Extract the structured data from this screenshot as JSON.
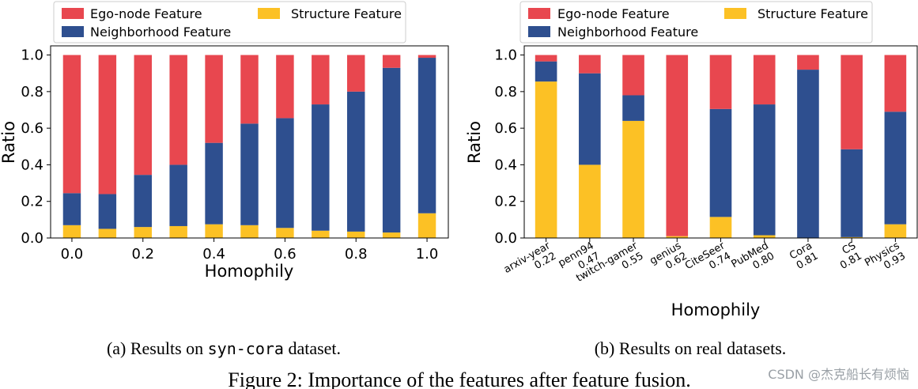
{
  "colors": {
    "ego": "#e8474f",
    "neighborhood": "#2e4f8f",
    "structure": "#fcc125",
    "frame": "#000000",
    "legend_border": "#cccccc"
  },
  "legend": {
    "ego": "Ego-node Feature",
    "neighborhood": "Neighborhood Feature",
    "structure": "Structure Feature"
  },
  "chart_data": [
    {
      "type": "bar",
      "stacked": true,
      "xlabel": "Homophily",
      "ylabel": "Ratio",
      "ylim": [
        0,
        1.05
      ],
      "xlim": [
        -0.06,
        1.06
      ],
      "yticks": [
        "0.0",
        "0.2",
        "0.4",
        "0.6",
        "0.8",
        "1.0"
      ],
      "xticks": [
        "0.0",
        "0.2",
        "0.4",
        "0.6",
        "0.8",
        "1.0"
      ],
      "x": [
        0.0,
        0.1,
        0.2,
        0.3,
        0.4,
        0.5,
        0.6,
        0.7,
        0.8,
        0.9,
        1.0
      ],
      "series": [
        {
          "name": "Structure Feature",
          "values": [
            0.07,
            0.05,
            0.06,
            0.065,
            0.075,
            0.07,
            0.055,
            0.04,
            0.035,
            0.03,
            0.135
          ]
        },
        {
          "name": "Neighborhood Feature",
          "values": [
            0.175,
            0.19,
            0.285,
            0.335,
            0.445,
            0.555,
            0.6,
            0.69,
            0.765,
            0.9,
            0.85
          ]
        },
        {
          "name": "Ego-node Feature",
          "values": [
            0.755,
            0.76,
            0.655,
            0.6,
            0.48,
            0.375,
            0.345,
            0.27,
            0.2,
            0.07,
            0.015
          ]
        }
      ],
      "caption_prefix": "(a) Results on ",
      "caption_code": "syn-cora",
      "caption_suffix": " dataset."
    },
    {
      "type": "bar",
      "stacked": true,
      "xlabel": "Homophily",
      "ylabel": "Ratio",
      "ylim": [
        0,
        1.05
      ],
      "yticks": [
        "0.0",
        "0.2",
        "0.4",
        "0.6",
        "0.8",
        "1.0"
      ],
      "categories": [
        "arxiv-year",
        "penn94",
        "twitch-gamer",
        "genius",
        "CiteSeer",
        "PubMed",
        "Cora",
        "CS",
        "Physics"
      ],
      "category_values": [
        "0.22",
        "0.47",
        "0.55",
        "0.62",
        "0.74",
        "0.80",
        "0.81",
        "0.81",
        "0.93"
      ],
      "series": [
        {
          "name": "Structure Feature",
          "values": [
            0.855,
            0.4,
            0.64,
            0.01,
            0.115,
            0.015,
            0.0,
            0.005,
            0.075
          ]
        },
        {
          "name": "Neighborhood Feature",
          "values": [
            0.11,
            0.5,
            0.14,
            0.0,
            0.59,
            0.715,
            0.92,
            0.48,
            0.615
          ]
        },
        {
          "name": "Ego-node Feature",
          "values": [
            0.035,
            0.1,
            0.22,
            0.99,
            0.295,
            0.27,
            0.08,
            0.515,
            0.31
          ]
        }
      ],
      "caption": "(b) Results on real datasets."
    }
  ],
  "figure_caption": "Figure 2: Importance of the features after feature fusion.",
  "watermark": "CSDN @杰克船长有烦恼"
}
